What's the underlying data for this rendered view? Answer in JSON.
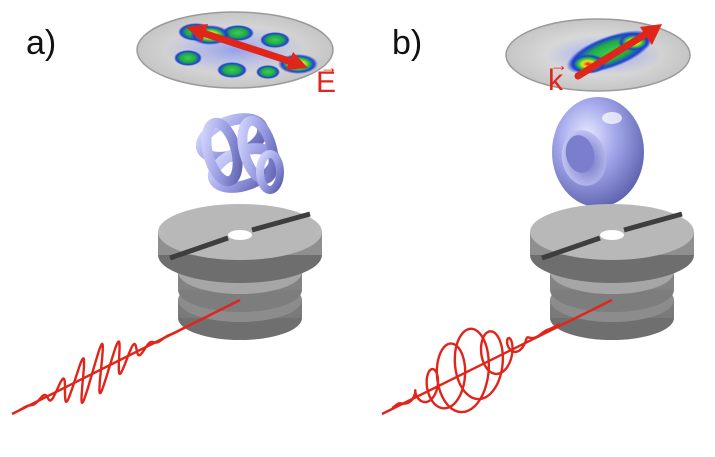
{
  "panels": [
    {
      "label": "a)",
      "field_symbol": "E",
      "field_arrow": "→"
    },
    {
      "label": "b)",
      "field_symbol": "k",
      "field_arrow": "→"
    }
  ],
  "colors": {
    "beam": "#e0251b",
    "isosurface": "#9fa3ea",
    "detector_plate": "#8a8a8a",
    "screen": "#d8d8d8"
  }
}
